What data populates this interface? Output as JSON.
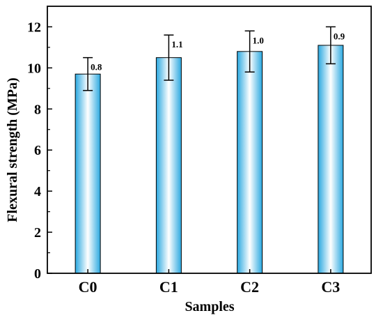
{
  "chart_data": {
    "type": "bar",
    "categories": [
      "C0",
      "C1",
      "C2",
      "C3"
    ],
    "values": [
      9.7,
      10.5,
      10.8,
      11.1
    ],
    "errors": [
      0.8,
      1.1,
      1.0,
      0.9
    ],
    "error_labels": [
      "0.8",
      "1.1",
      "1.0",
      "0.9"
    ],
    "xlabel": "Samples",
    "ylabel": "Flexural strength (MPa)",
    "ylim": [
      0,
      13
    ],
    "yticks": [
      0,
      2,
      4,
      6,
      8,
      10,
      12
    ],
    "grid": false,
    "bar_colors": {
      "edge": "#2aa8e0",
      "center": "#ffffff",
      "outline": "#000000"
    }
  }
}
